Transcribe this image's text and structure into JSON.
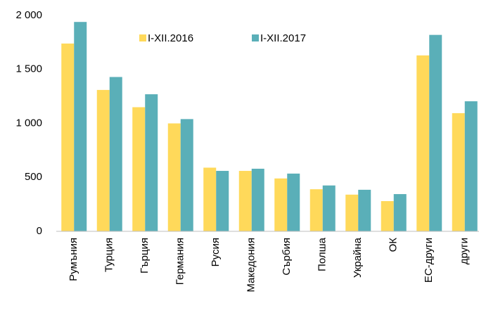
{
  "chart_data": {
    "type": "bar",
    "categories": [
      "Румъния",
      "Турция",
      "Гърция",
      "Германия",
      "Русия",
      "Македония",
      "Сърбия",
      "Полша",
      "Украйна",
      "ОК",
      "ЕС-други",
      "други"
    ],
    "series": [
      {
        "name": "I-XII.2016",
        "color": "#ffd95a",
        "values": [
          1740,
          1310,
          1150,
          1000,
          590,
          560,
          490,
          390,
          340,
          280,
          1630,
          1095
        ]
      },
      {
        "name": "I-XII.2017",
        "color": "#5aafb8",
        "values": [
          1940,
          1430,
          1270,
          1040,
          560,
          580,
          535,
          425,
          385,
          345,
          1820,
          1205
        ]
      }
    ],
    "ylim": [
      0,
      2000
    ],
    "yticks": [
      0,
      500,
      {
        "value": 1000,
        "label": "1 000"
      },
      {
        "value": 1500,
        "label": "1 500"
      },
      {
        "value": 2000,
        "label": "2 000"
      }
    ],
    "grid": false
  }
}
